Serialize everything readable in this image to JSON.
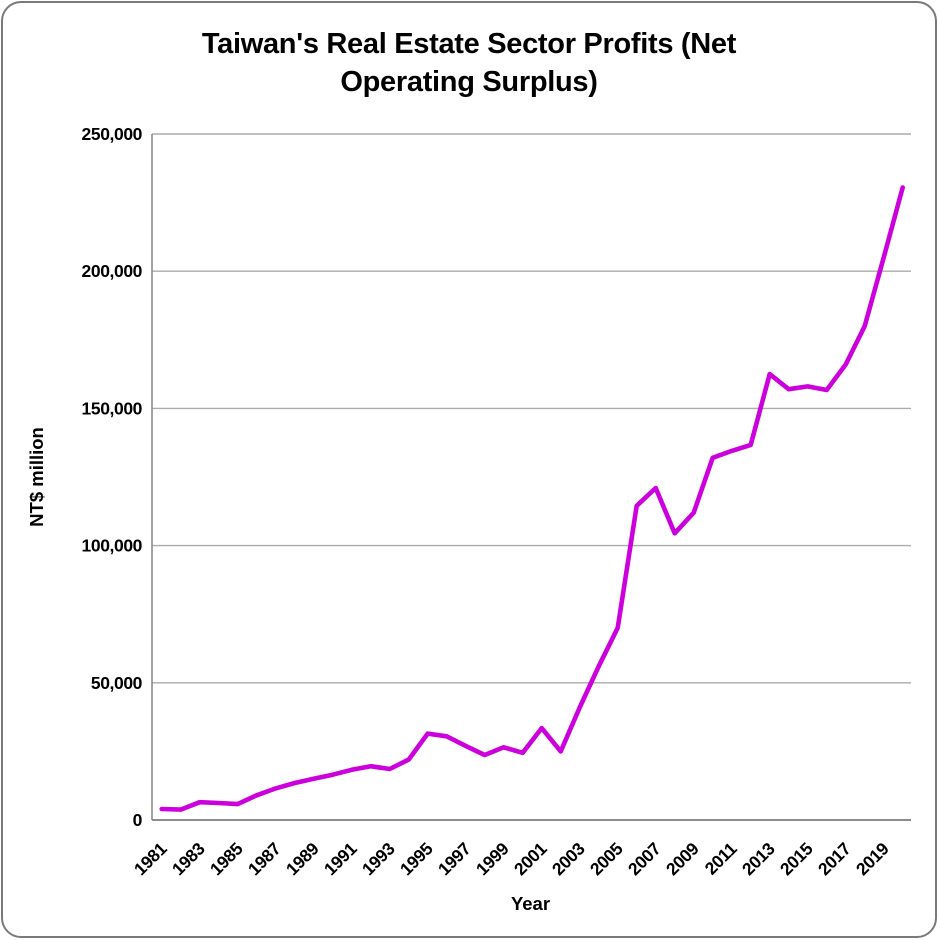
{
  "title": "Taiwan's Real Estate Sector Profits (Net Operating Surplus)",
  "chart_data": {
    "type": "line",
    "title": "Taiwan's Real Estate Sector Profits (Net Operating Surplus)",
    "xlabel": "Year",
    "ylabel": "NT$ million",
    "x": [
      1981,
      1982,
      1983,
      1984,
      1985,
      1986,
      1987,
      1988,
      1989,
      1990,
      1991,
      1992,
      1993,
      1994,
      1995,
      1996,
      1997,
      1998,
      1999,
      2000,
      2001,
      2002,
      2003,
      2004,
      2005,
      2006,
      2007,
      2008,
      2009,
      2010,
      2011,
      2012,
      2013,
      2014,
      2015,
      2016,
      2017,
      2018,
      2019,
      2020
    ],
    "values": [
      4000,
      3800,
      6500,
      6200,
      5800,
      9000,
      11500,
      13500,
      15000,
      16500,
      18300,
      19600,
      18600,
      22000,
      31500,
      30500,
      27000,
      23700,
      26500,
      24500,
      33500,
      25000,
      41000,
      56000,
      70000,
      114500,
      121000,
      104500,
      112000,
      132000,
      134500,
      136700,
      162500,
      157000,
      158000,
      156700,
      166000,
      180000,
      205000,
      230500
    ],
    "xticks": [
      1981,
      1983,
      1985,
      1987,
      1989,
      1991,
      1993,
      1995,
      1997,
      1999,
      2001,
      2003,
      2005,
      2007,
      2009,
      2011,
      2013,
      2015,
      2017,
      2019
    ],
    "ylim": [
      0,
      250000
    ],
    "ytick_step": 50000,
    "grid": "horizontal",
    "legend": "none",
    "line_color": "#CC00DD",
    "grid_color": "#ababab",
    "axis_color": "#8c8c8c"
  }
}
